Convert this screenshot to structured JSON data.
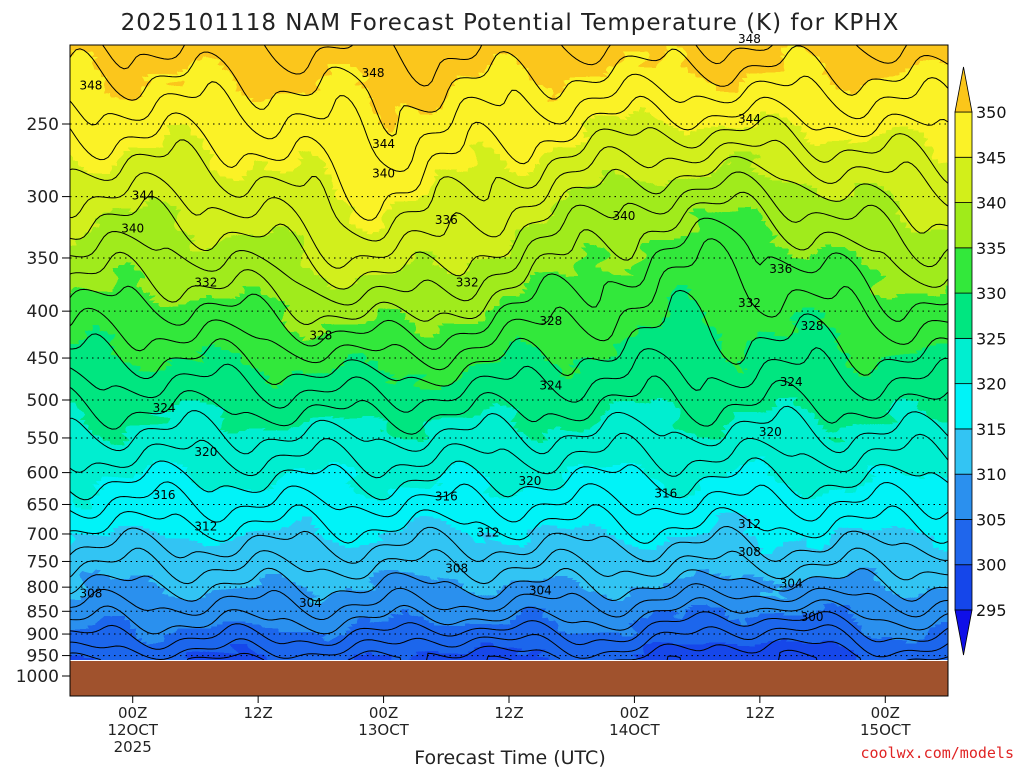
{
  "chart_data": {
    "type": "heatmap",
    "title": "2025101118 NAM Forecast Potential Temperature (K) for KPHX",
    "xlabel": "Forecast Time (UTC)",
    "credit": "coolwx.com/models",
    "y_ticks": [
      "250",
      "300",
      "350",
      "400",
      "450",
      "500",
      "550",
      "600",
      "650",
      "700",
      "750",
      "800",
      "850",
      "900",
      "950",
      "1000"
    ],
    "x_ticks": [
      {
        "l1": "00Z",
        "l2": "12OCT",
        "l3": "2025",
        "h": 0
      },
      {
        "l1": "12Z",
        "l2": "",
        "l3": "",
        "h": 12
      },
      {
        "l1": "00Z",
        "l2": "13OCT",
        "l3": "",
        "h": 24
      },
      {
        "l1": "12Z",
        "l2": "",
        "l3": "",
        "h": 36
      },
      {
        "l1": "00Z",
        "l2": "14OCT",
        "l3": "",
        "h": 48
      },
      {
        "l1": "12Z",
        "l2": "",
        "l3": "",
        "h": 60
      },
      {
        "l1": "00Z",
        "l2": "15OCT",
        "l3": "",
        "h": 72
      }
    ],
    "x_range_hours": [
      -6,
      78
    ],
    "colorbar": {
      "levels": [
        295,
        300,
        305,
        310,
        315,
        320,
        325,
        330,
        335,
        340,
        345,
        350
      ],
      "labels": [
        "295",
        "300",
        "305",
        "310",
        "315",
        "320",
        "325",
        "330",
        "335",
        "340",
        "345",
        "350"
      ],
      "colors": [
        "#0f0fe8",
        "#1546ea",
        "#1f66ec",
        "#2b90ee",
        "#33c4f3",
        "#00f3f8",
        "#00eed0",
        "#00e680",
        "#33e83b",
        "#a0eb1a",
        "#d2ef1a",
        "#fbf227",
        "#fbc61a"
      ]
    },
    "contour_labels": [
      {
        "text": "348",
        "h": -4,
        "p": 227
      },
      {
        "text": "348",
        "h": 23,
        "p": 220
      },
      {
        "text": "348",
        "h": 59,
        "p": 202
      },
      {
        "text": "344",
        "h": 24,
        "p": 263
      },
      {
        "text": "344",
        "h": 59,
        "p": 247
      },
      {
        "text": "344",
        "h": 1,
        "p": 299
      },
      {
        "text": "340",
        "h": 0,
        "p": 325
      },
      {
        "text": "340",
        "h": 24,
        "p": 283
      },
      {
        "text": "340",
        "h": 47,
        "p": 315
      },
      {
        "text": "336",
        "h": 30,
        "p": 318
      },
      {
        "text": "336",
        "h": 62,
        "p": 360
      },
      {
        "text": "332",
        "h": 7,
        "p": 372
      },
      {
        "text": "332",
        "h": 32,
        "p": 372
      },
      {
        "text": "332",
        "h": 59,
        "p": 392
      },
      {
        "text": "328",
        "h": 18,
        "p": 425
      },
      {
        "text": "328",
        "h": 40,
        "p": 410
      },
      {
        "text": "328",
        "h": 65,
        "p": 415
      },
      {
        "text": "324",
        "h": 3,
        "p": 510
      },
      {
        "text": "324",
        "h": 40,
        "p": 482
      },
      {
        "text": "324",
        "h": 63,
        "p": 478
      },
      {
        "text": "320",
        "h": 7,
        "p": 570
      },
      {
        "text": "320",
        "h": 38,
        "p": 613
      },
      {
        "text": "320",
        "h": 61,
        "p": 542
      },
      {
        "text": "316",
        "h": 3,
        "p": 635
      },
      {
        "text": "316",
        "h": 30,
        "p": 637
      },
      {
        "text": "316",
        "h": 51,
        "p": 632
      },
      {
        "text": "312",
        "h": 7,
        "p": 687
      },
      {
        "text": "312",
        "h": 34,
        "p": 697
      },
      {
        "text": "312",
        "h": 59,
        "p": 683
      },
      {
        "text": "308",
        "h": -4,
        "p": 813
      },
      {
        "text": "308",
        "h": 31,
        "p": 763
      },
      {
        "text": "308",
        "h": 59,
        "p": 732
      },
      {
        "text": "304",
        "h": 17,
        "p": 832
      },
      {
        "text": "304",
        "h": 39,
        "p": 807
      },
      {
        "text": "304",
        "h": 63,
        "p": 793
      },
      {
        "text": "300",
        "h": 65,
        "p": 862
      }
    ],
    "ground_pressure": 963
  }
}
